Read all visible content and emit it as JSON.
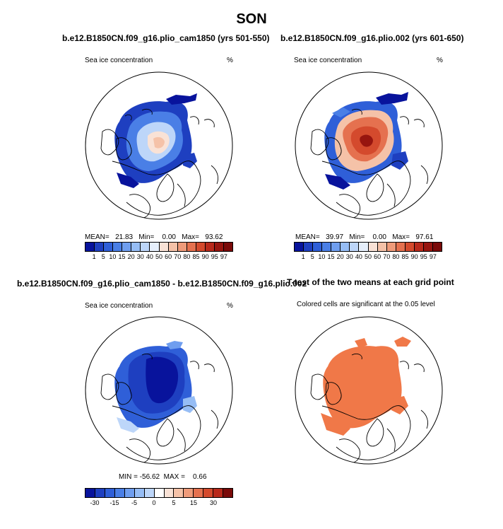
{
  "figure": {
    "title": "SON"
  },
  "panels": {
    "p1": {
      "title": "b.e12.B1850CN.f09_g16.plio_cam1850 (yrs 501-550)",
      "variable": "Sea ice concentration",
      "units": "%",
      "stats_text": "MEAN=   21.83   Min=    0.00   Max=   93.62",
      "mean": 21.83,
      "min": 0.0,
      "max": 93.62
    },
    "p2": {
      "title": "b.e12.B1850CN.f09_g16.plio.002 (yrs 601-650)",
      "variable": "Sea ice concentration",
      "units": "%",
      "stats_text": "MEAN=   39.97   Min=    0.00   Max=   97.61",
      "mean": 39.97,
      "min": 0.0,
      "max": 97.61
    },
    "p3": {
      "title": "b.e12.B1850CN.f09_g16.plio_cam1850 - b.e12.B1850CN.f09_g16.plio.002",
      "variable": "Sea ice concentration",
      "units": "%",
      "stats_text": "MIN = -56.62  MAX =    0.66",
      "min": -56.62,
      "max": 0.66
    },
    "p4": {
      "title": "T-test of the two means at each grid point",
      "subtitle": "Colored cells are significant at the 0.05 level"
    }
  },
  "colorbars": {
    "concentration": {
      "labels": [
        "1",
        "5",
        "10",
        "15",
        "20",
        "30",
        "40",
        "50",
        "60",
        "70",
        "80",
        "85",
        "90",
        "95",
        "97"
      ],
      "colors": [
        "#08139c",
        "#1e3fc0",
        "#2f5fd8",
        "#4a7fe6",
        "#6f9eef",
        "#96bdf5",
        "#bdd6f9",
        "#e6effb",
        "#f9e2d6",
        "#f5c2a8",
        "#ef9b7a",
        "#e5714f",
        "#d44a2d",
        "#b8291b",
        "#97150f",
        "#7a0a09"
      ]
    },
    "difference": {
      "labels": [
        "-30",
        "-15",
        "-5",
        "0",
        "5",
        "15",
        "30"
      ],
      "colors": [
        "#08139c",
        "#1e3fc0",
        "#2f5fd8",
        "#4a7fe6",
        "#6f9eef",
        "#96bdf5",
        "#bdd6f9",
        "#ffffff",
        "#f9e2d6",
        "#f5c2a8",
        "#ef9b7a",
        "#e5714f",
        "#d44a2d",
        "#b8291b",
        "#7a0a09"
      ]
    }
  },
  "colors": {
    "significance": "#f07848",
    "coast": "#000000"
  }
}
